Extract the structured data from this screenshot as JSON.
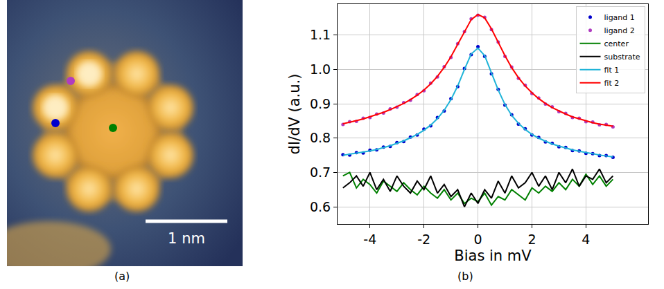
{
  "figure": {
    "panel_labels": [
      "(a)",
      "(b)"
    ]
  },
  "image": {
    "scale_bar_label": "1 nm",
    "points": [
      "ligand 2",
      "ligand 1",
      "center"
    ]
  },
  "chart_data": {
    "type": "scatter",
    "x_label": "Bias in mV",
    "y_label": "dI/dV (a.u.)",
    "x": [
      -5,
      -4.75,
      -4.5,
      -4.25,
      -4,
      -3.75,
      -3.5,
      -3.25,
      -3,
      -2.75,
      -2.5,
      -2.25,
      -2,
      -1.75,
      -1.5,
      -1.25,
      -1,
      -0.75,
      -0.5,
      -0.25,
      0,
      0.25,
      0.5,
      0.75,
      1,
      1.25,
      1.5,
      1.75,
      2,
      2.25,
      2.5,
      2.75,
      3,
      3.25,
      3.5,
      3.75,
      4,
      4.25,
      4.5,
      4.75,
      5
    ],
    "series": [
      {
        "name": "ligand 1",
        "type": "scatter",
        "marker": "circle",
        "color": "#0000cc",
        "values": [
          0.752,
          0.751,
          0.758,
          0.757,
          0.765,
          0.766,
          0.774,
          0.776,
          0.787,
          0.79,
          0.803,
          0.809,
          0.826,
          0.836,
          0.86,
          0.879,
          0.915,
          0.95,
          1.003,
          1.043,
          1.066,
          1.038,
          0.987,
          0.942,
          0.896,
          0.868,
          0.841,
          0.827,
          0.809,
          0.802,
          0.789,
          0.785,
          0.775,
          0.773,
          0.764,
          0.763,
          0.756,
          0.755,
          0.749,
          0.749,
          0.744
        ]
      },
      {
        "name": "ligand 2",
        "type": "scatter",
        "marker": "circle",
        "color": "#b03cc0",
        "values": [
          0.84,
          0.848,
          0.849,
          0.858,
          0.86,
          0.87,
          0.873,
          0.885,
          0.89,
          0.903,
          0.91,
          0.927,
          0.938,
          0.96,
          0.978,
          1.008,
          1.035,
          1.075,
          1.11,
          1.147,
          1.158,
          1.152,
          1.116,
          1.08,
          1.038,
          1.007,
          0.974,
          0.954,
          0.93,
          0.917,
          0.899,
          0.891,
          0.877,
          0.872,
          0.86,
          0.858,
          0.848,
          0.847,
          0.839,
          0.84,
          0.833
        ]
      },
      {
        "name": "center",
        "type": "line",
        "line_style": "solid",
        "color": "#008000",
        "values": [
          0.69,
          0.7,
          0.655,
          0.68,
          0.665,
          0.64,
          0.675,
          0.66,
          0.645,
          0.67,
          0.65,
          0.635,
          0.66,
          0.64,
          0.625,
          0.65,
          0.62,
          0.64,
          0.61,
          0.625,
          0.615,
          0.64,
          0.605,
          0.63,
          0.62,
          0.65,
          0.635,
          0.62,
          0.655,
          0.64,
          0.66,
          0.645,
          0.67,
          0.65,
          0.68,
          0.66,
          0.695,
          0.665,
          0.69,
          0.66,
          0.68
        ]
      },
      {
        "name": "substrate",
        "type": "line",
        "line_style": "solid",
        "color": "#000000",
        "values": [
          0.655,
          0.67,
          0.69,
          0.66,
          0.7,
          0.65,
          0.68,
          0.645,
          0.69,
          0.66,
          0.64,
          0.675,
          0.65,
          0.69,
          0.64,
          0.665,
          0.63,
          0.65,
          0.6,
          0.64,
          0.61,
          0.65,
          0.625,
          0.675,
          0.64,
          0.69,
          0.655,
          0.67,
          0.7,
          0.66,
          0.69,
          0.65,
          0.7,
          0.67,
          0.71,
          0.66,
          0.69,
          0.68,
          0.71,
          0.67,
          0.69
        ]
      },
      {
        "name": "fit 1",
        "type": "line",
        "line_style": "solid",
        "color": "#1fb4d8",
        "values": [
          0.75,
          0.753,
          0.756,
          0.759,
          0.763,
          0.767,
          0.772,
          0.778,
          0.785,
          0.792,
          0.801,
          0.811,
          0.823,
          0.838,
          0.857,
          0.881,
          0.912,
          0.952,
          1.0,
          1.045,
          1.062,
          1.04,
          0.99,
          0.94,
          0.898,
          0.866,
          0.843,
          0.825,
          0.811,
          0.8,
          0.791,
          0.783,
          0.777,
          0.771,
          0.766,
          0.762,
          0.758,
          0.754,
          0.751,
          0.748,
          0.745
        ]
      },
      {
        "name": "fit 2",
        "type": "line",
        "line_style": "solid",
        "color": "#ff0000",
        "values": [
          0.842,
          0.846,
          0.851,
          0.856,
          0.862,
          0.868,
          0.875,
          0.883,
          0.892,
          0.901,
          0.912,
          0.925,
          0.94,
          0.958,
          0.98,
          1.006,
          1.037,
          1.073,
          1.112,
          1.145,
          1.16,
          1.15,
          1.118,
          1.078,
          1.04,
          1.005,
          0.976,
          0.952,
          0.932,
          0.915,
          0.901,
          0.889,
          0.879,
          0.87,
          0.862,
          0.856,
          0.85,
          0.845,
          0.841,
          0.838,
          0.835
        ]
      }
    ],
    "xlim": [
      -5.2,
      6.3
    ],
    "ylim": [
      0.55,
      1.19
    ],
    "xticks": [
      -4,
      -2,
      0,
      2,
      4
    ],
    "yticks": [
      0.6,
      0.7,
      0.8,
      0.9,
      {
        "value": 1,
        "label": "1.0"
      },
      1.1
    ],
    "grid": true,
    "legend": "upper right"
  }
}
